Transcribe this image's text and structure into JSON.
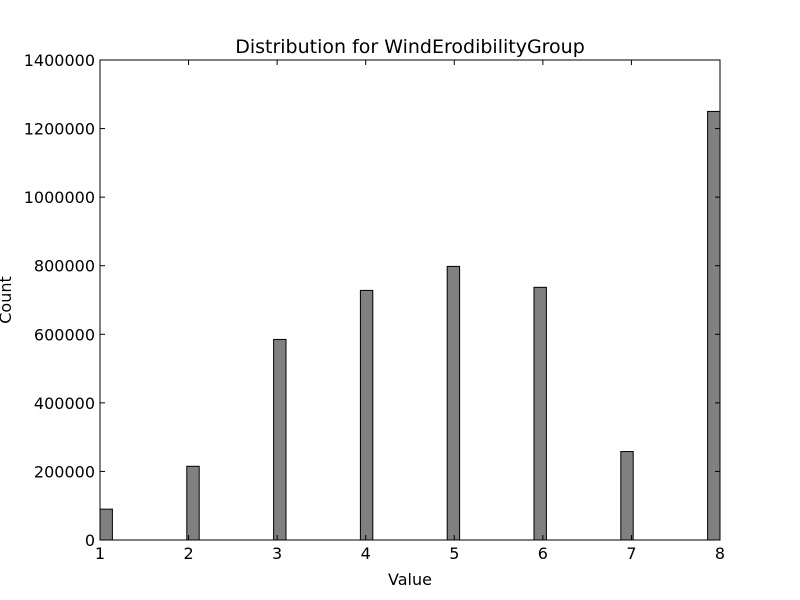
{
  "chart_data": {
    "type": "bar",
    "title": "Distribution for WindErodibilityGroup",
    "xlabel": "Value",
    "ylabel": "Count",
    "xlim": [
      1,
      8
    ],
    "ylim": [
      0,
      1400000
    ],
    "xticks": [
      "1",
      "2",
      "3",
      "4",
      "5",
      "6",
      "7",
      "8"
    ],
    "yticks": [
      "0",
      "200000",
      "400000",
      "600000",
      "800000",
      "1000000",
      "1200000",
      "1400000"
    ],
    "bin_width": 0.14,
    "bars": [
      {
        "x": 1,
        "value": 90000
      },
      {
        "x": 2,
        "value": 215000
      },
      {
        "x": 3,
        "value": 585000
      },
      {
        "x": 4,
        "value": 728000
      },
      {
        "x": 5,
        "value": 798000
      },
      {
        "x": 6,
        "value": 737000
      },
      {
        "x": 7,
        "value": 258000
      },
      {
        "x": 8,
        "value": 1250000
      }
    ],
    "bar_color": "#808080",
    "edge_color": "#000000",
    "grid": false,
    "legend": "none"
  }
}
